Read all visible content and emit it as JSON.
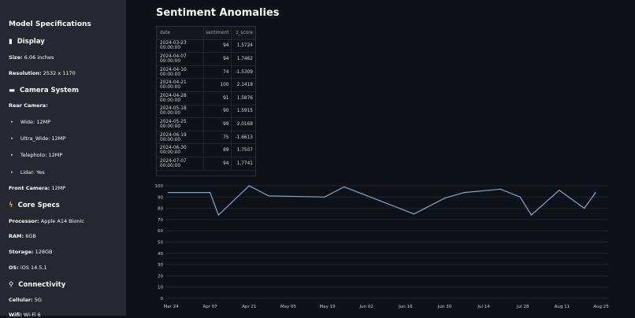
{
  "sidebar": {
    "title": "Model Specifications",
    "display": {
      "heading": "Display",
      "icon": "mobile-phone-icon",
      "size_label": "Size:",
      "size": "6.06 inches",
      "res_label": "Resolution:",
      "res": "2532 x 1170"
    },
    "camera": {
      "heading": "Camera System",
      "icon": "camera-icon",
      "rear_label": "Rear Camera:",
      "rear": [
        "Wide: 12MP",
        "Ultra_Wide: 12MP",
        "Telephoto: 12MP",
        "Lidar: Yes"
      ],
      "front_label": "Front Camera:",
      "front": "12MP"
    },
    "core": {
      "heading": "Core Specs",
      "icon": "lightning-icon",
      "proc_label": "Processor:",
      "proc": "Apple A14 Bionic",
      "ram_label": "RAM:",
      "ram": "6GB",
      "storage_label": "Storage:",
      "storage": "128GB",
      "os_label": "OS:",
      "os": "iOS 14.5.1"
    },
    "conn": {
      "heading": "Connectivity",
      "icon": "satellite-icon",
      "cell_label": "Cellular:",
      "cell": "5G",
      "wifi_label": "Wifi:",
      "wifi": "Wi-Fi 6"
    }
  },
  "main": {
    "title": "Sentiment Anomalies",
    "table": {
      "headers": [
        "date",
        "sentiment",
        "z_score"
      ],
      "rows": [
        [
          "2024-03-23 00:00:00",
          "94",
          "1.5724"
        ],
        [
          "2024-04-07 00:00:00",
          "94",
          "1.7462"
        ],
        [
          "2024-04-10 00:00:00",
          "74",
          "-1.5309"
        ],
        [
          "2024-04-21 00:00:00",
          "100",
          "2.1418"
        ],
        [
          "2024-04-28 00:00:00",
          "91",
          "1.5876"
        ],
        [
          "2024-05-18 00:00:00",
          "90",
          "1.5915"
        ],
        [
          "2024-05-25 00:00:00",
          "99",
          "2.0168"
        ],
        [
          "2024-06-19 00:00:00",
          "75",
          "-1.6613"
        ],
        [
          "2024-06-30 00:00:00",
          "89",
          "1.7507"
        ],
        [
          "2024-07-07 00:00:00",
          "94",
          "1.7741"
        ]
      ]
    }
  },
  "chart_data": {
    "type": "line",
    "line_color": "#7fa8d0",
    "grid": true,
    "ylim": [
      0,
      100
    ],
    "yticks": [
      0,
      10,
      20,
      30,
      40,
      50,
      60,
      70,
      80,
      90,
      100
    ],
    "xticks": [
      "Mar 24",
      "Apr 07",
      "Apr 21",
      "May 05",
      "May 19",
      "Jun 02",
      "Jun 16",
      "Jun 30",
      "Jul 14",
      "Jul 28",
      "Aug 11",
      "Aug 25"
    ],
    "xtick_dates": [
      "2024-03-24",
      "2024-04-07",
      "2024-04-21",
      "2024-05-05",
      "2024-05-19",
      "2024-06-02",
      "2024-06-16",
      "2024-06-30",
      "2024-07-14",
      "2024-07-28",
      "2024-08-11",
      "2024-08-25"
    ],
    "x": [
      "2024-03-23",
      "2024-04-07",
      "2024-04-10",
      "2024-04-21",
      "2024-04-28",
      "2024-05-18",
      "2024-05-25",
      "2024-06-19",
      "2024-06-30",
      "2024-07-07",
      "2024-07-20",
      "2024-07-27",
      "2024-07-31",
      "2024-08-10",
      "2024-08-19",
      "2024-08-23"
    ],
    "y": [
      94,
      94,
      74,
      100,
      91,
      90,
      99,
      75,
      89,
      94,
      97,
      90,
      74,
      96,
      80,
      94
    ]
  }
}
